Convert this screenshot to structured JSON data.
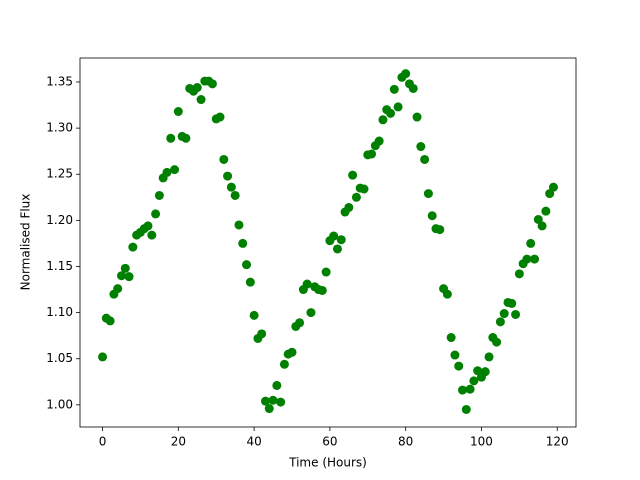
{
  "chart_data": {
    "type": "scatter",
    "x_label": "Time (Hours)",
    "y_label": "Normalised Flux",
    "color": "#008000",
    "x": [
      0,
      1,
      2,
      3,
      4,
      5,
      6,
      7,
      8,
      9,
      10,
      11,
      12,
      13,
      14,
      15,
      16,
      17,
      18,
      19,
      20,
      21,
      22,
      23,
      24,
      25,
      26,
      27,
      28,
      29,
      30,
      31,
      32,
      33,
      34,
      35,
      36,
      37,
      38,
      39,
      40,
      41,
      42,
      43,
      44,
      45,
      46,
      47,
      48,
      49,
      50,
      51,
      52,
      53,
      54,
      55,
      56,
      57,
      58,
      59,
      60,
      61,
      62,
      63,
      64,
      65,
      66,
      67,
      68,
      69,
      70,
      71,
      72,
      73,
      74,
      75,
      76,
      77,
      78,
      79,
      80,
      81,
      82,
      83,
      84,
      85,
      86,
      87,
      88,
      89,
      90,
      91,
      92,
      93,
      94,
      95,
      96,
      97,
      98,
      99,
      100,
      101,
      102,
      103,
      104,
      105,
      106,
      107,
      108,
      109,
      110,
      111,
      112,
      113,
      114,
      115,
      116,
      117,
      118,
      119
    ],
    "y": [
      1.052,
      1.094,
      1.091,
      1.12,
      1.126,
      1.14,
      1.148,
      1.139,
      1.171,
      1.184,
      1.187,
      1.191,
      1.194,
      1.184,
      1.207,
      1.227,
      1.246,
      1.252,
      1.289,
      1.255,
      1.318,
      1.291,
      1.289,
      1.343,
      1.34,
      1.344,
      1.331,
      1.351,
      1.351,
      1.348,
      1.31,
      1.312,
      1.266,
      1.248,
      1.236,
      1.227,
      1.195,
      1.175,
      1.152,
      1.133,
      1.097,
      1.072,
      1.077,
      1.004,
      0.996,
      1.005,
      1.021,
      1.003,
      1.044,
      1.055,
      1.057,
      1.085,
      1.089,
      1.125,
      1.131,
      1.1,
      1.128,
      1.125,
      1.124,
      1.144,
      1.178,
      1.183,
      1.169,
      1.179,
      1.209,
      1.214,
      1.249,
      1.225,
      1.235,
      1.234,
      1.271,
      1.272,
      1.281,
      1.286,
      1.309,
      1.32,
      1.316,
      1.342,
      1.323,
      1.355,
      1.359,
      1.348,
      1.343,
      1.312,
      1.28,
      1.266,
      1.229,
      1.205,
      1.191,
      1.19,
      1.126,
      1.12,
      1.073,
      1.054,
      1.042,
      1.016,
      0.995,
      1.017,
      1.026,
      1.037,
      1.03,
      1.036,
      1.052,
      1.073,
      1.068,
      1.09,
      1.099,
      1.111,
      1.11,
      1.098,
      1.142,
      1.153,
      1.158,
      1.175,
      1.158,
      1.201,
      1.194,
      1.21,
      1.229,
      1.236
    ],
    "xlim": [
      -5.95,
      124.95
    ],
    "ylim": [
      0.976,
      1.376
    ],
    "xticks": [
      0,
      20,
      40,
      60,
      80,
      100,
      120
    ],
    "yticks": [
      {
        "value": 1.0,
        "label": "1.00"
      },
      1.05,
      {
        "value": 1.1,
        "label": "1.10"
      },
      1.15,
      {
        "value": 1.2,
        "label": "1.20"
      },
      1.25,
      {
        "value": 1.3,
        "label": "1.30"
      },
      1.35
    ]
  }
}
